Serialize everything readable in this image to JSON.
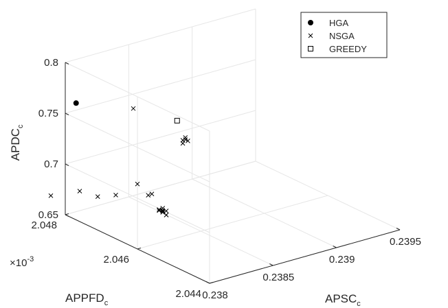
{
  "chart_data": {
    "type": "scatter",
    "title": "",
    "xlabel": {
      "main": "APSC",
      "sub": "c"
    },
    "ylabel": {
      "main": "APPFD",
      "sub": "c"
    },
    "zlabel": {
      "main": "APDC",
      "sub": "c"
    },
    "y_exponent": {
      "prefix": "×10",
      "power": "-3"
    },
    "xlim": [
      0.238,
      0.2395
    ],
    "ylim": [
      2.044,
      2.048
    ],
    "zlim": [
      0.65,
      0.8
    ],
    "x_ticks": [
      "0.238",
      "0.2385",
      "0.239",
      "0.2395"
    ],
    "y_ticks": [
      "2.044",
      "2.046",
      "2.048"
    ],
    "z_ticks": [
      "0.65",
      "0.7",
      "0.75",
      "0.8"
    ],
    "grid": true,
    "legend_position": "top-right",
    "series": [
      {
        "name": "HGA",
        "marker": "filled-circle",
        "color": "#000000",
        "points": [
          {
            "x": 0.238,
            "y": 2.0477,
            "z": 0.765
          }
        ]
      },
      {
        "name": "NSGA",
        "marker": "x",
        "color": "#000000",
        "points": [
          {
            "x": 0.238,
            "y": 2.0456,
            "z": 0.711
          },
          {
            "x": 0.238,
            "y": 2.0457,
            "z": 0.708
          },
          {
            "x": 0.238,
            "y": 2.046,
            "z": 0.714
          },
          {
            "x": 0.238,
            "y": 2.0466,
            "z": 0.693
          },
          {
            "x": 0.238,
            "y": 2.0471,
            "z": 0.683
          },
          {
            "x": 0.238,
            "y": 2.0476,
            "z": 0.68
          },
          {
            "x": 0.238,
            "y": 2.0484,
            "z": 0.662
          },
          {
            "x": 0.238,
            "y": 2.0453,
            "z": 0.702
          },
          {
            "x": 0.238,
            "y": 2.0453,
            "z": 0.7
          },
          {
            "x": 0.238,
            "y": 2.0453,
            "z": 0.699
          },
          {
            "x": 0.238,
            "y": 2.0453,
            "z": 0.698
          },
          {
            "x": 0.238,
            "y": 2.0454,
            "z": 0.698
          },
          {
            "x": 0.238,
            "y": 2.0452,
            "z": 0.697
          },
          {
            "x": 0.238,
            "y": 2.0452,
            "z": 0.697
          },
          {
            "x": 0.238,
            "y": 2.0454,
            "z": 0.699
          },
          {
            "x": 0.238,
            "y": 2.0452,
            "z": 0.701
          },
          {
            "x": 0.23865,
            "y": 2.0484,
            "z": 0.725
          },
          {
            "x": 0.23906,
            "y": 2.0484,
            "z": 0.682
          },
          {
            "x": 0.23906,
            "y": 2.0484,
            "z": 0.68
          },
          {
            "x": 0.23904,
            "y": 2.0484,
            "z": 0.677
          },
          {
            "x": 0.23908,
            "y": 2.0484,
            "z": 0.678
          },
          {
            "x": 0.23904,
            "y": 2.0484,
            "z": 0.68
          }
        ]
      },
      {
        "name": "GREEDY",
        "marker": "open-square",
        "color": "#000000",
        "points": [
          {
            "x": 0.238,
            "y": 2.0449,
            "z": 0.795
          }
        ]
      }
    ]
  }
}
